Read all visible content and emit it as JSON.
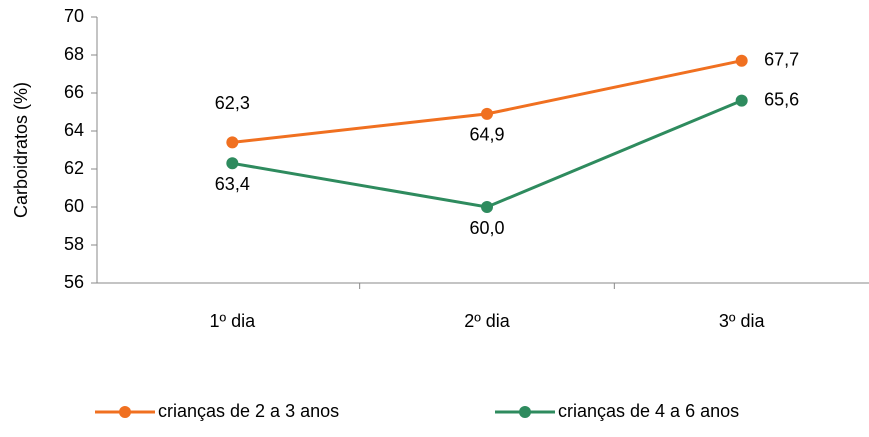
{
  "chart_data": {
    "type": "line",
    "y_label": "Carboidratos (%)",
    "categories": [
      "1º dia",
      "2º dia",
      "3º dia"
    ],
    "series": [
      {
        "name": "crianças de 2 a 3 anos",
        "color": "#f07020",
        "values": [
          63.4,
          64.9,
          67.7
        ],
        "value_labels": [
          "63,4",
          "64,9",
          "67,7"
        ]
      },
      {
        "name": "crianças de 4 a 6 anos",
        "color": "#2e8b5e",
        "values": [
          62.3,
          60.0,
          65.6
        ],
        "value_labels": [
          "62,3",
          "60,0",
          "65,6"
        ]
      }
    ],
    "ylim": [
      56,
      70
    ],
    "yticks": [
      56,
      58,
      60,
      62,
      64,
      66,
      68,
      70
    ],
    "grid": false
  }
}
